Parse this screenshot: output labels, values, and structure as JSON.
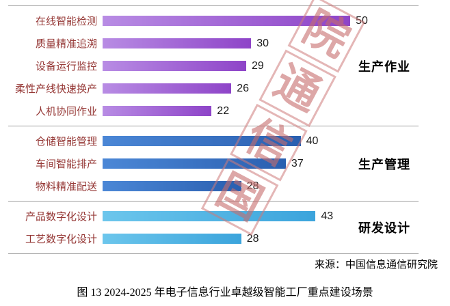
{
  "chart_data": {
    "type": "bar",
    "orientation": "horizontal",
    "title": "",
    "xlabel": "",
    "ylabel": "",
    "xlim": [
      0,
      58
    ],
    "grid": "group-separator-lines",
    "legend_position": "none",
    "groups": [
      {
        "label": "生产作业",
        "color_start": "#b88ce4",
        "color_end": "#8e44c8",
        "items": [
          {
            "category": "在线智能检测",
            "value": 50
          },
          {
            "category": "质量精准追溯",
            "value": 30
          },
          {
            "category": "设备运行监控",
            "value": 29
          },
          {
            "category": "柔性产线快速换产",
            "value": 26
          },
          {
            "category": "人机协同作业",
            "value": 22
          }
        ]
      },
      {
        "label": "生产管理",
        "color_start": "#4b87d6",
        "color_end": "#2a5fb0",
        "items": [
          {
            "category": "仓储智能管理",
            "value": 40
          },
          {
            "category": "车间智能排产",
            "value": 37
          },
          {
            "category": "物料精准配送",
            "value": 28
          }
        ]
      },
      {
        "label": "研发设计",
        "color_start": "#6cc6ec",
        "color_end": "#3ba4dc",
        "items": [
          {
            "category": "产品数字化设计",
            "value": 43
          },
          {
            "category": "工艺数字化设计",
            "value": 28
          }
        ]
      }
    ]
  },
  "watermark": {
    "chars": [
      "院",
      "通",
      "信",
      "国"
    ],
    "color": "#cd7a7a"
  },
  "source": "来源：中国信息通信研究院",
  "caption": "图 13 2024-2025 年电子信息行业卓越级智能工厂重点建设场景"
}
